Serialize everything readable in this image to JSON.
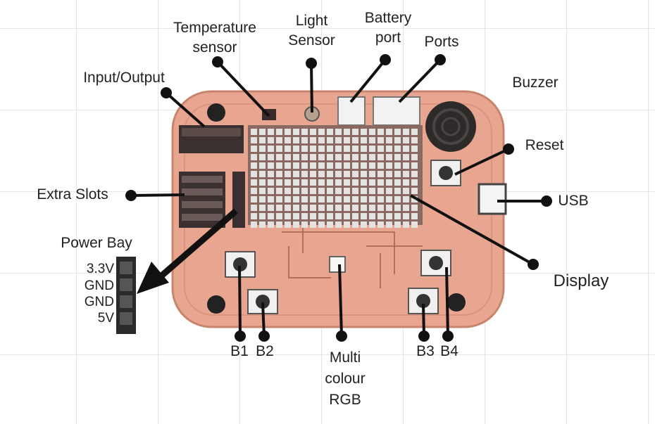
{
  "labels": {
    "temperature_sensor": "Temperature\nsensor",
    "light_sensor": "Light\nSensor",
    "battery_port": "Battery\nport",
    "ports": "Ports",
    "buzzer": "Buzzer",
    "input_output": "Input/Output",
    "reset": "Reset",
    "extra_slots": "Extra Slots",
    "usb": "USB",
    "power_bay": "Power Bay",
    "display": "Display",
    "b1": "B1",
    "b2": "B2",
    "b3": "B3",
    "b4": "B4",
    "multi_colour_rgb": "Multi\ncolour\nRGB"
  },
  "power_pins": [
    "3.3V",
    "GND",
    "GND",
    "5V"
  ],
  "colors": {
    "board": "#e8a58f",
    "board_edge": "#c9846d",
    "matrix_cell": "#e3e3e3",
    "leader": "#111111"
  }
}
